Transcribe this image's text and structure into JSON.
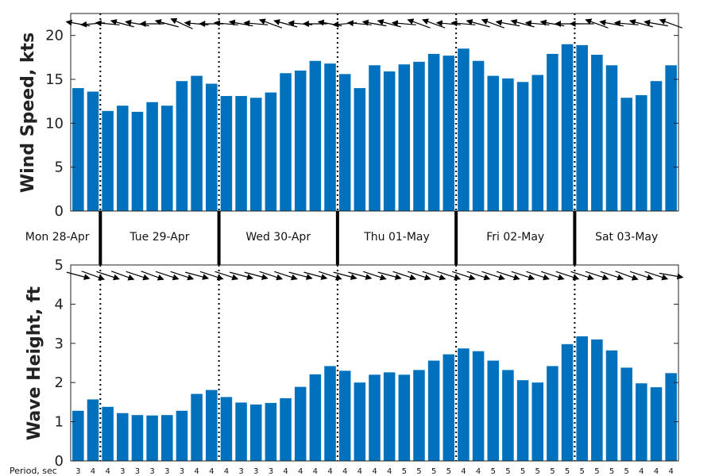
{
  "chart_data": [
    {
      "type": "bar",
      "ylabel": "Wind Speed, kts",
      "ylim": [
        0,
        22.5
      ],
      "yticks": [
        0,
        5,
        10,
        15,
        20
      ],
      "bar_color": "#0072bd",
      "direction_arrows": "shown above bars, pointing generally west (from the east)",
      "values": [
        14.0,
        13.6,
        11.4,
        12.0,
        11.3,
        12.4,
        12.0,
        14.8,
        15.4,
        14.5,
        13.1,
        13.1,
        12.9,
        13.5,
        15.7,
        16.0,
        17.1,
        16.8,
        15.6,
        14.0,
        16.6,
        15.9,
        16.7,
        17.0,
        17.9,
        17.7,
        18.5,
        17.1,
        15.4,
        15.1,
        14.7,
        15.5,
        17.9,
        19.0,
        18.9,
        17.8,
        16.6,
        12.9,
        13.2,
        14.8,
        16.6
      ]
    },
    {
      "type": "bar",
      "ylabel": "Wave Height, ft",
      "ylim": [
        0,
        5
      ],
      "yticks": [
        0,
        1,
        2,
        3,
        4,
        5
      ],
      "bar_color": "#0072bd",
      "direction_arrows": "shown above bars, pointing generally east-southeast",
      "values": [
        1.28,
        1.57,
        1.38,
        1.22,
        1.17,
        1.16,
        1.17,
        1.28,
        1.71,
        1.81,
        1.63,
        1.49,
        1.44,
        1.48,
        1.6,
        1.89,
        2.21,
        2.42,
        2.3,
        2.0,
        2.2,
        2.26,
        2.2,
        2.32,
        2.56,
        2.72,
        2.87,
        2.8,
        2.56,
        2.32,
        2.06,
        2.0,
        2.42,
        2.98,
        3.18,
        3.1,
        2.82,
        2.38,
        1.98,
        1.88,
        2.24
      ]
    }
  ],
  "days": [
    "Mon 28-Apr",
    "Tue 29-Apr",
    "Wed 30-Apr",
    "Thu 01-May",
    "Fri 02-May",
    "Sat 03-May"
  ],
  "day_boundaries_after_bar": [
    1,
    9,
    17,
    25,
    33
  ],
  "period_title": "Period, sec",
  "periods": [
    3,
    4,
    4,
    3,
    3,
    3,
    3,
    3,
    4,
    4,
    4,
    3,
    3,
    3,
    4,
    4,
    4,
    4,
    4,
    4,
    4,
    4,
    5,
    5,
    5,
    5,
    4,
    4,
    5,
    5,
    5,
    5,
    5,
    5,
    5,
    5,
    5,
    5,
    4,
    4,
    4
  ],
  "wind_arrow_angles_deg": [
    190,
    175,
    185,
    195,
    190,
    180,
    195,
    205,
    185,
    180,
    185,
    190,
    185,
    200,
    195,
    185,
    180,
    190,
    175,
    185,
    190,
    195,
    185,
    200,
    200,
    185,
    185,
    195,
    200,
    190,
    195,
    185,
    190,
    180,
    180,
    200,
    190,
    185,
    195,
    190,
    200
  ],
  "wave_arrow_angles_deg": [
    15,
    20,
    18,
    20,
    18,
    20,
    18,
    18,
    15,
    18,
    18,
    15,
    15,
    18,
    18,
    15,
    15,
    18,
    15,
    15,
    18,
    15,
    18,
    18,
    18,
    18,
    18,
    18,
    18,
    18,
    18,
    18,
    18,
    18,
    18,
    18,
    18,
    20,
    18,
    18,
    10
  ]
}
